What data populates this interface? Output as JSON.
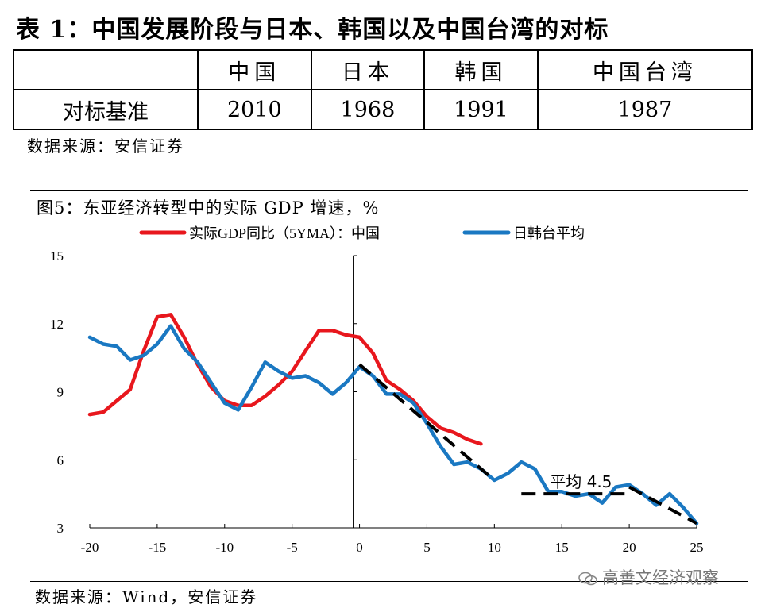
{
  "table1": {
    "title": "表 1：中国发展阶段与日本、韩国以及中国台湾的对标",
    "headers": [
      "",
      "中国",
      "日本",
      "韩国",
      "中国台湾"
    ],
    "row_label": "对标基准",
    "values": [
      "2010",
      "1968",
      "1991",
      "1987"
    ],
    "source": "数据来源：安信证券"
  },
  "figure": {
    "title": "图5：东亚经济转型中的实际 GDP 增速，%",
    "source": "数据来源：Wind，安信证券"
  },
  "watermark": "高善文经济观察",
  "colors": {
    "china": "#e8171d",
    "avg": "#1a78c2",
    "trend": "#000000"
  },
  "chart_data": {
    "type": "line",
    "title": "图5：东亚经济转型中的实际 GDP 增速，%",
    "xlim": [
      -20,
      25
    ],
    "ylim": [
      3,
      15
    ],
    "x_ticks": [
      "-20",
      "-15",
      "-10",
      "-5",
      "0",
      "5",
      "10",
      "15",
      "20",
      "25"
    ],
    "y_ticks": [
      "15",
      "12",
      "9",
      "6",
      "3"
    ],
    "legend": [
      "实际GDP同比（5YMA）：中国",
      "日韩台平均"
    ],
    "legend_position": "top",
    "series": [
      {
        "name": "实际GDP同比（5YMA）：中国",
        "color": "#e8171d",
        "style": "solid",
        "x": [
          -20,
          -19,
          -18,
          -17,
          -16,
          -15,
          -14,
          -13,
          -12,
          -11,
          -10,
          -9,
          -8,
          -7,
          -6,
          -5,
          -4,
          -3,
          -2,
          -1,
          0,
          1,
          2,
          3,
          4,
          5,
          6,
          7,
          8,
          9
        ],
        "values": [
          8.0,
          8.1,
          8.6,
          9.1,
          10.8,
          12.3,
          12.4,
          11.4,
          10.2,
          9.2,
          8.6,
          8.4,
          8.4,
          8.8,
          9.3,
          9.9,
          10.8,
          11.7,
          11.7,
          11.5,
          11.4,
          10.7,
          9.5,
          9.1,
          8.6,
          7.9,
          7.4,
          7.2,
          6.9,
          6.7
        ]
      },
      {
        "name": "日韩台平均",
        "color": "#1a78c2",
        "style": "solid",
        "x": [
          -20,
          -19,
          -18,
          -17,
          -16,
          -15,
          -14,
          -13,
          -12,
          -11,
          -10,
          -9,
          -8,
          -7,
          -6,
          -5,
          -4,
          -3,
          -2,
          -1,
          0,
          1,
          2,
          3,
          4,
          5,
          6,
          7,
          8,
          9,
          10,
          11,
          12,
          13,
          14,
          15,
          16,
          17,
          18,
          19,
          20,
          21,
          22,
          23,
          24,
          25
        ],
        "values": [
          11.4,
          11.1,
          11.0,
          10.4,
          10.6,
          11.1,
          11.9,
          10.9,
          10.3,
          9.4,
          8.5,
          8.2,
          9.2,
          10.3,
          9.9,
          9.6,
          9.7,
          9.4,
          8.9,
          9.4,
          10.1,
          9.7,
          8.9,
          8.9,
          8.5,
          7.6,
          6.6,
          5.8,
          5.9,
          5.6,
          5.1,
          5.4,
          5.9,
          5.6,
          4.6,
          4.6,
          4.4,
          4.5,
          4.1,
          4.8,
          4.9,
          4.5,
          4.0,
          4.5,
          3.9,
          3.2
        ]
      },
      {
        "name": "trend",
        "color": "#000000",
        "style": "dashed",
        "x": [
          0,
          10
        ],
        "values": [
          10.2,
          5.1
        ]
      },
      {
        "name": "trend2",
        "color": "#000000",
        "style": "dashed",
        "x": [
          20,
          25
        ],
        "values": [
          4.8,
          3.2
        ]
      },
      {
        "name": "平均 4.5",
        "color": "#000000",
        "style": "dashed",
        "x": [
          12,
          20
        ],
        "values": [
          4.5,
          4.5
        ]
      }
    ],
    "annotation": {
      "text": "平均 4.5",
      "x": 14,
      "y": 4.5
    }
  }
}
